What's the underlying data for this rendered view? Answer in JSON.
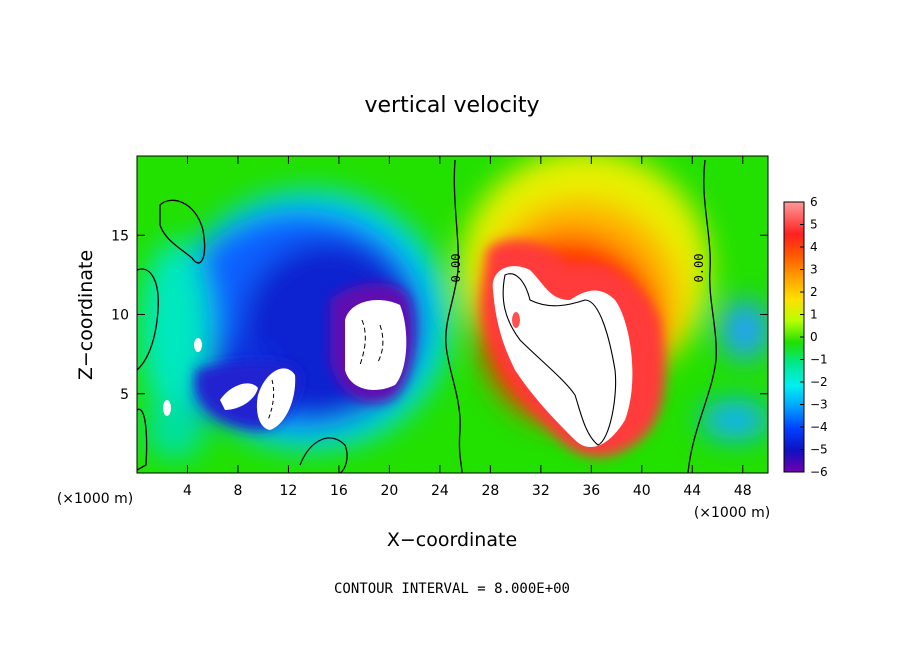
{
  "chart_data": {
    "type": "heatmap",
    "title": "vertical velocity",
    "xlabel": "X−coordinate",
    "ylabel": "Z−coordinate",
    "x_unit": "(×1000 m)",
    "xlim": [
      0,
      50
    ],
    "ylim": [
      0,
      20
    ],
    "x_ticks": [
      "4",
      "8",
      "12",
      "16",
      "20",
      "24",
      "28",
      "32",
      "36",
      "40",
      "44",
      "48"
    ],
    "y_ticks": [
      "5",
      "10",
      "15"
    ],
    "x_tick_values": [
      4,
      8,
      12,
      16,
      20,
      24,
      28,
      32,
      36,
      40,
      44,
      48
    ],
    "y_tick_values": [
      5,
      10,
      15
    ],
    "colorbar": {
      "labels": [
        "6",
        "5",
        "4",
        "3",
        "2",
        "1",
        "0",
        "−1",
        "−2",
        "−3",
        "−4",
        "−5",
        "−6"
      ],
      "min": -6,
      "max": 6,
      "out_of_range_color": "#ffffff"
    },
    "contour_labels": [
      {
        "text": "0.00",
        "x": 25.5,
        "z": 13.0
      },
      {
        "text": "0.00",
        "x": 44.5,
        "z": 13.0
      }
    ],
    "contour_interval_text": "CONTOUR INTERVAL = 8.000E+00",
    "features": [
      {
        "kind": "updraft_core",
        "x": 34.5,
        "z": 7.5,
        "w_max": "> 6"
      },
      {
        "kind": "downdraft_core",
        "x": 19.0,
        "z": 8.5,
        "w_min": "< -6"
      },
      {
        "kind": "downdraft_core",
        "x": 10.5,
        "z": 5.0,
        "w_min": "< -6"
      }
    ]
  }
}
